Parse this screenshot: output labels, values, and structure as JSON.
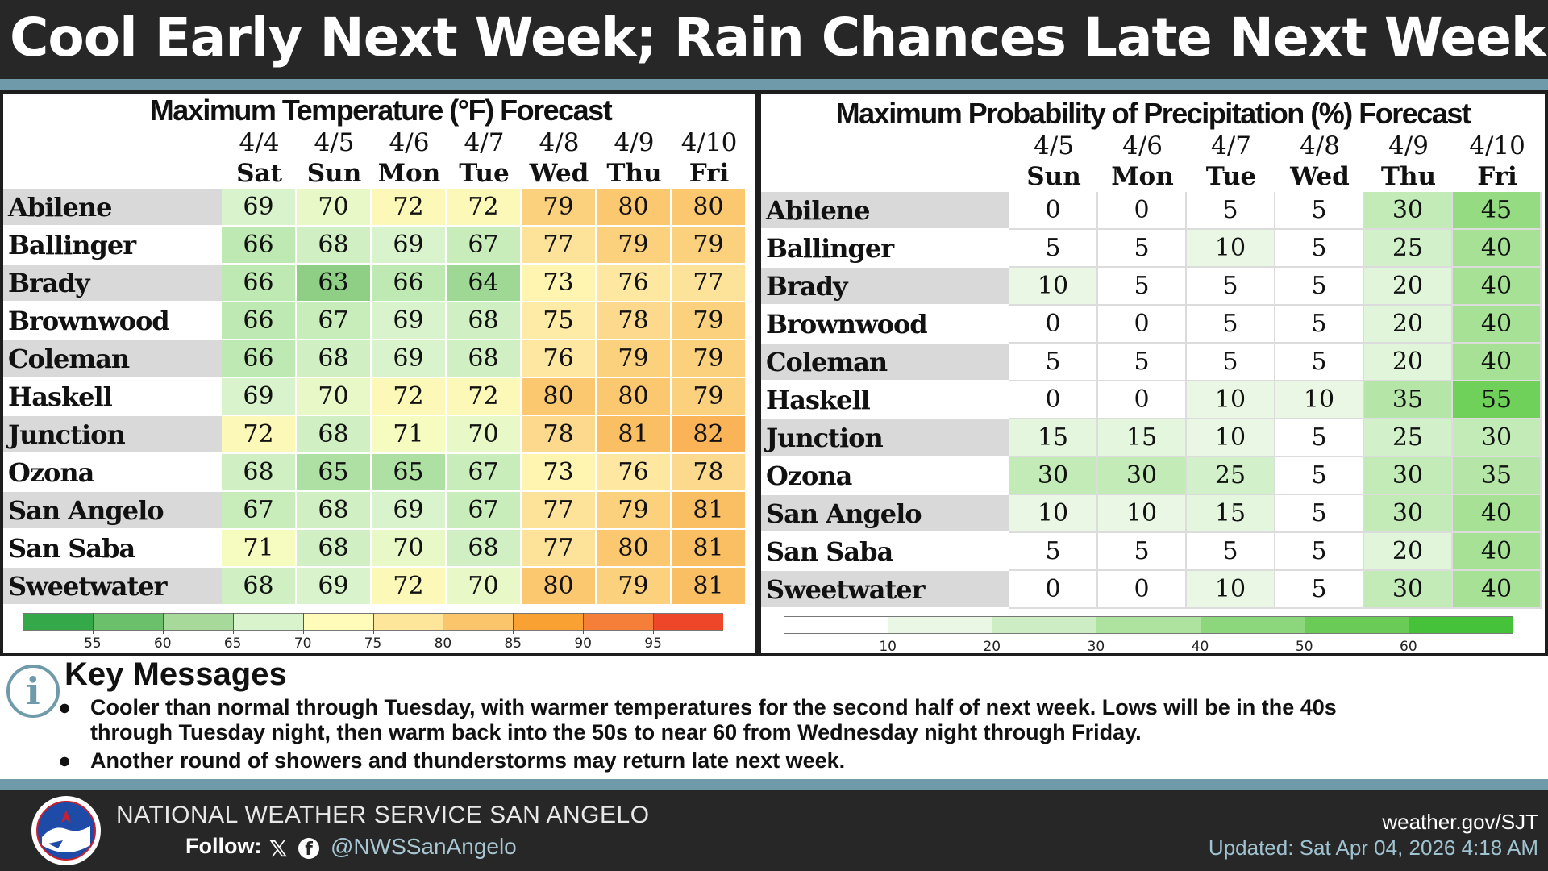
{
  "header": {
    "title": "Cool Early Next Week; Rain Chances Late Next Week"
  },
  "colors": {
    "header_bg": "#272727",
    "accent_stripe": "#6f9aaa",
    "row_label_shade": "#d9d9d9"
  },
  "chart_data": [
    {
      "type": "table",
      "title": "Maximum Temperature (°F) Forecast",
      "columns": [
        {
          "date": "4/4",
          "day": "Sat"
        },
        {
          "date": "4/5",
          "day": "Sun"
        },
        {
          "date": "4/6",
          "day": "Mon"
        },
        {
          "date": "4/7",
          "day": "Tue"
        },
        {
          "date": "4/8",
          "day": "Wed"
        },
        {
          "date": "4/9",
          "day": "Thu"
        },
        {
          "date": "4/10",
          "day": "Fri"
        }
      ],
      "rows": [
        {
          "name": "Abilene",
          "values": [
            69,
            70,
            72,
            72,
            79,
            80,
            80
          ]
        },
        {
          "name": "Ballinger",
          "values": [
            66,
            68,
            69,
            67,
            77,
            79,
            79
          ]
        },
        {
          "name": "Brady",
          "values": [
            66,
            63,
            66,
            64,
            73,
            76,
            77
          ]
        },
        {
          "name": "Brownwood",
          "values": [
            66,
            67,
            69,
            68,
            75,
            78,
            79
          ]
        },
        {
          "name": "Coleman",
          "values": [
            66,
            68,
            69,
            68,
            76,
            79,
            79
          ]
        },
        {
          "name": "Haskell",
          "values": [
            69,
            70,
            72,
            72,
            80,
            80,
            79
          ]
        },
        {
          "name": "Junction",
          "values": [
            72,
            68,
            71,
            70,
            78,
            81,
            82
          ]
        },
        {
          "name": "Ozona",
          "values": [
            68,
            65,
            65,
            67,
            73,
            76,
            78
          ]
        },
        {
          "name": "San Angelo",
          "values": [
            67,
            68,
            69,
            67,
            77,
            79,
            81
          ]
        },
        {
          "name": "San Saba",
          "values": [
            71,
            68,
            70,
            68,
            77,
            80,
            81
          ]
        },
        {
          "name": "Sweetwater",
          "values": [
            68,
            69,
            72,
            70,
            80,
            79,
            81
          ]
        }
      ],
      "colorbar": {
        "ticks": [
          "55",
          "60",
          "65",
          "70",
          "75",
          "80",
          "85",
          "90",
          "95"
        ],
        "colors": [
          "#35a849",
          "#6bc06c",
          "#a6d99a",
          "#d9f4cc",
          "#fffbb8",
          "#fde59a",
          "#fbc56b",
          "#f9a233",
          "#f57f38",
          "#ee4628"
        ]
      }
    },
    {
      "type": "table",
      "title": "Maximum Probability of Precipitation (%) Forecast",
      "columns": [
        {
          "date": "4/5",
          "day": "Sun"
        },
        {
          "date": "4/6",
          "day": "Mon"
        },
        {
          "date": "4/7",
          "day": "Tue"
        },
        {
          "date": "4/8",
          "day": "Wed"
        },
        {
          "date": "4/9",
          "day": "Thu"
        },
        {
          "date": "4/10",
          "day": "Fri"
        }
      ],
      "rows": [
        {
          "name": "Abilene",
          "values": [
            0,
            0,
            5,
            5,
            30,
            45
          ]
        },
        {
          "name": "Ballinger",
          "values": [
            5,
            5,
            10,
            5,
            25,
            40
          ]
        },
        {
          "name": "Brady",
          "values": [
            10,
            5,
            5,
            5,
            20,
            40
          ]
        },
        {
          "name": "Brownwood",
          "values": [
            0,
            0,
            5,
            5,
            20,
            40
          ]
        },
        {
          "name": "Coleman",
          "values": [
            5,
            5,
            5,
            5,
            20,
            40
          ]
        },
        {
          "name": "Haskell",
          "values": [
            0,
            0,
            10,
            10,
            35,
            55
          ]
        },
        {
          "name": "Junction",
          "values": [
            15,
            15,
            10,
            5,
            25,
            30
          ]
        },
        {
          "name": "Ozona",
          "values": [
            30,
            30,
            25,
            5,
            30,
            35
          ]
        },
        {
          "name": "San Angelo",
          "values": [
            10,
            10,
            15,
            5,
            30,
            40
          ]
        },
        {
          "name": "San Saba",
          "values": [
            5,
            5,
            5,
            5,
            20,
            40
          ]
        },
        {
          "name": "Sweetwater",
          "values": [
            0,
            0,
            10,
            5,
            30,
            40
          ]
        }
      ],
      "colorbar": {
        "ticks": [
          "10",
          "20",
          "30",
          "40",
          "50",
          "60"
        ],
        "colors": [
          "#ffffff",
          "#e9f7e4",
          "#cdeec4",
          "#ade39f",
          "#8cd77b",
          "#6acc57",
          "#45c13a"
        ]
      }
    }
  ],
  "key_messages": {
    "icon": "info-icon",
    "title": "Key Messages",
    "bullet_symbol": "●",
    "bullets": [
      {
        "line1": "Cooler than normal through Tuesday, with warmer temperatures for the second half of next week. Lows will be in the 40s",
        "line2": "through Tuesday night, then warm back into the 50s to near 60 from Wednesday night through Friday."
      },
      {
        "line1": "Another round of showers and thunderstorms may return late next week.",
        "line2": ""
      }
    ]
  },
  "footer": {
    "agency": "NATIONAL WEATHER SERVICE SAN ANGELO",
    "follow_label": "Follow:",
    "x_icon": "𝕏",
    "fb_icon": "f",
    "handle": "@NWSSanAngelo",
    "website": "weather.gov/SJT",
    "updated": "Updated: Sat Apr 04, 2026 4:18 AM",
    "logo_icon": "nws-logo"
  }
}
